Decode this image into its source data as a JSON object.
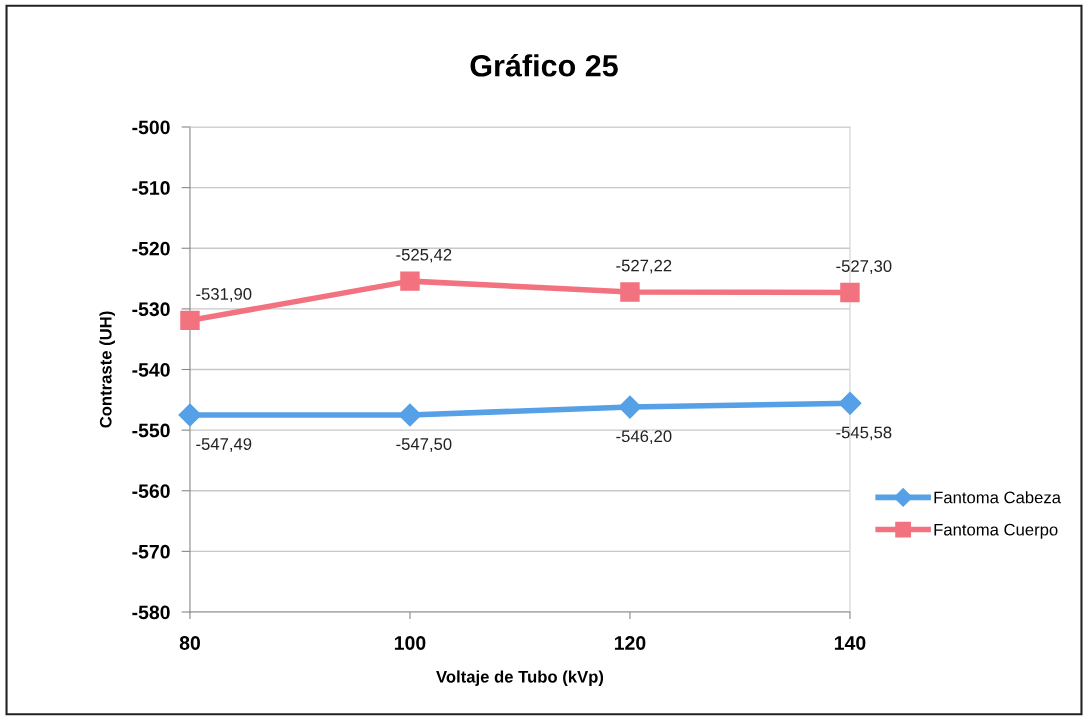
{
  "chart_data": {
    "type": "line",
    "title": "Gráfico 25",
    "xlabel": "Voltaje de Tubo (kVp)",
    "ylabel": "Contraste (UH)",
    "x": [
      80,
      100,
      120,
      140
    ],
    "xlim": [
      80,
      140
    ],
    "xticks": [
      80,
      100,
      120,
      140
    ],
    "ylim": [
      -580,
      -500
    ],
    "yticks": [
      -580,
      -570,
      -560,
      -550,
      -540,
      -530,
      -520,
      -510,
      -500
    ],
    "grid": "y",
    "legend": "right",
    "series": [
      {
        "name": "Fantoma Cabeza",
        "color": "#55a0e6",
        "marker": "diamond",
        "values": [
          -547.49,
          -547.5,
          -546.2,
          -545.58
        ],
        "value_labels": [
          "-547,49",
          "-547,50",
          "-546,20",
          "-545,58"
        ]
      },
      {
        "name": "Fantoma Cuerpo",
        "color": "#f2737f",
        "marker": "square",
        "values": [
          -531.9,
          -525.42,
          -527.22,
          -527.3
        ],
        "value_labels": [
          "-531,90",
          "-525,42",
          "-527,22",
          "-527,30"
        ]
      }
    ]
  }
}
